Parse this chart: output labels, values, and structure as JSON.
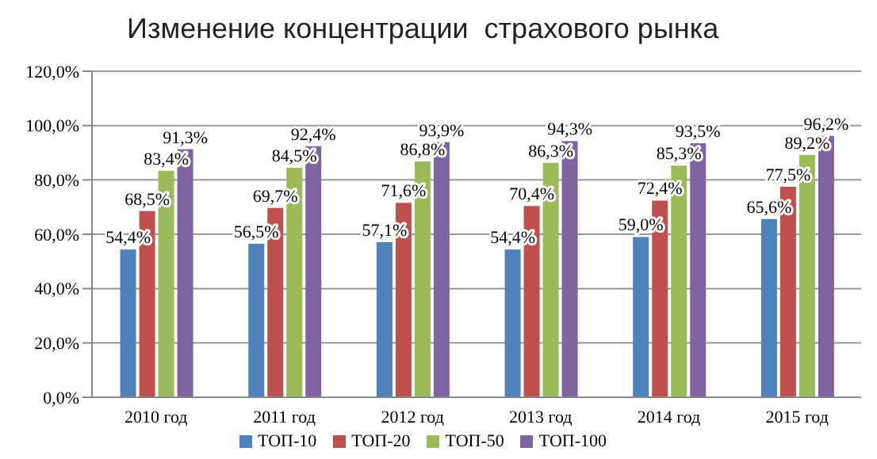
{
  "chart_data": {
    "type": "bar",
    "title": "Изменение концентрации  страхового рынка",
    "categories": [
      "2010 год",
      "2011 год",
      "2012 год",
      "2013 год",
      "2014 год",
      "2015 год"
    ],
    "series": [
      {
        "name": "ТОП-10",
        "color": "#4f81bd",
        "values": [
          54.4,
          56.5,
          57.1,
          54.4,
          59.0,
          65.6
        ],
        "value_labels": [
          "54,4%",
          "56,5%",
          "57,1%",
          "54,4%",
          "59,0%",
          "65,6%"
        ]
      },
      {
        "name": "ТОП-20",
        "color": "#c0504d",
        "values": [
          68.5,
          69.7,
          71.6,
          70.4,
          72.4,
          77.5
        ],
        "value_labels": [
          "68,5%",
          "69,7%",
          "71,6%",
          "70,4%",
          "72,4%",
          "77,5%"
        ]
      },
      {
        "name": "ТОП-50",
        "color": "#9bbb59",
        "values": [
          83.4,
          84.5,
          86.8,
          86.3,
          85.3,
          89.2
        ],
        "value_labels": [
          "83,4%",
          "84,5%",
          "86,8%",
          "86,3%",
          "85,3%",
          "89,2%"
        ]
      },
      {
        "name": "ТОП-100",
        "color": "#8064a2",
        "values": [
          91.3,
          92.4,
          93.9,
          94.3,
          93.5,
          96.2
        ],
        "value_labels": [
          "91,3%",
          "92,4%",
          "93,9%",
          "94,3%",
          "93,5%",
          "96,2%"
        ]
      }
    ],
    "ylim": [
      0,
      120
    ],
    "yticks": [
      {
        "value": 0,
        "label": "0,0%"
      },
      {
        "value": 20,
        "label": "20,0%"
      },
      {
        "value": 40,
        "label": "40,0%"
      },
      {
        "value": 60,
        "label": "60,0%"
      },
      {
        "value": 80,
        "label": "80,0%"
      },
      {
        "value": 100,
        "label": "100,0%"
      },
      {
        "value": 120,
        "label": "120,0%"
      }
    ],
    "grid": "y",
    "legend": "bottom"
  }
}
